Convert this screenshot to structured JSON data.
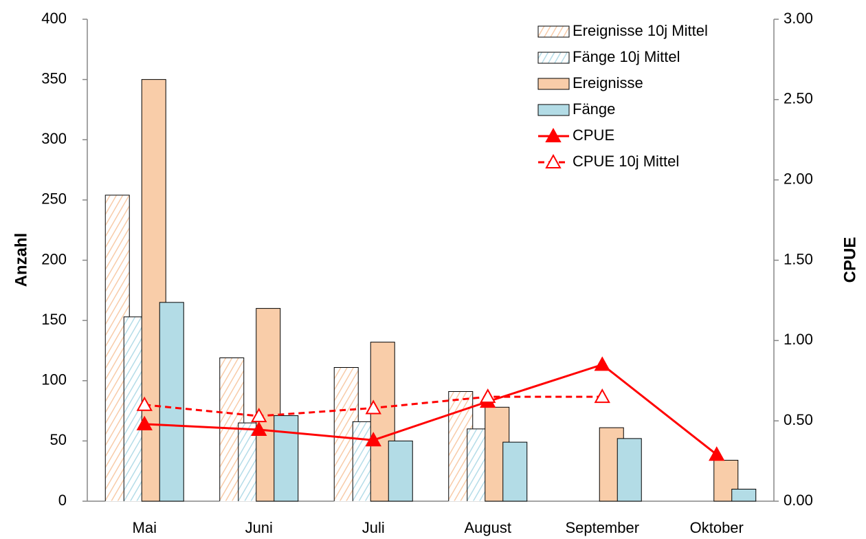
{
  "chart_data": {
    "type": "bar",
    "categories": [
      "Mai",
      "Juni",
      "Juli",
      "August",
      "September",
      "Oktober"
    ],
    "ylabel": "Anzahl",
    "y2label": "CPUE",
    "ylim": [
      0,
      400
    ],
    "yticks": [
      0,
      50,
      100,
      150,
      200,
      250,
      300,
      350,
      400
    ],
    "y2lim": [
      0,
      3
    ],
    "y2ticks": [
      {
        "value": 0,
        "label": "0.00"
      },
      {
        "value": 0.5,
        "label": "0.50"
      },
      {
        "value": 1,
        "label": "1.00"
      },
      {
        "value": 1.5,
        "label": "1.50"
      },
      {
        "value": 2,
        "label": "2.00"
      },
      {
        "value": 2.5,
        "label": "2.50"
      },
      {
        "value": 3,
        "label": "3.00"
      }
    ],
    "legend": "upper right",
    "series": [
      {
        "name": "Ereignisse 10j Mittel",
        "type": "bar",
        "color": "#f8cba8",
        "hatched": true,
        "values": [
          254,
          119,
          111,
          91,
          null,
          null
        ]
      },
      {
        "name": "Fänge 10j Mittel",
        "type": "bar",
        "color": "#b4dce8",
        "hatched": true,
        "values": [
          153,
          65,
          66,
          60,
          null,
          null
        ]
      },
      {
        "name": "Ereignisse",
        "type": "bar",
        "color": "#f9cda9",
        "hatched": false,
        "values": [
          350,
          160,
          132,
          78,
          61,
          34
        ]
      },
      {
        "name": "Fänge",
        "type": "bar",
        "color": "#b3dce6",
        "hatched": false,
        "values": [
          165,
          71,
          50,
          49,
          52,
          10
        ]
      },
      {
        "name": "CPUE",
        "type": "line",
        "axis": "y2",
        "color": "#ff0000",
        "dashed": false,
        "marker": "filled",
        "values": [
          0.48,
          0.445,
          0.38,
          0.62,
          0.85,
          0.29
        ]
      },
      {
        "name": "CPUE 10j Mittel",
        "type": "line",
        "axis": "y2",
        "color": "#ff0000",
        "dashed": true,
        "marker": "hollow",
        "values": [
          0.6,
          0.53,
          0.58,
          0.65,
          0.65,
          null
        ]
      }
    ]
  }
}
